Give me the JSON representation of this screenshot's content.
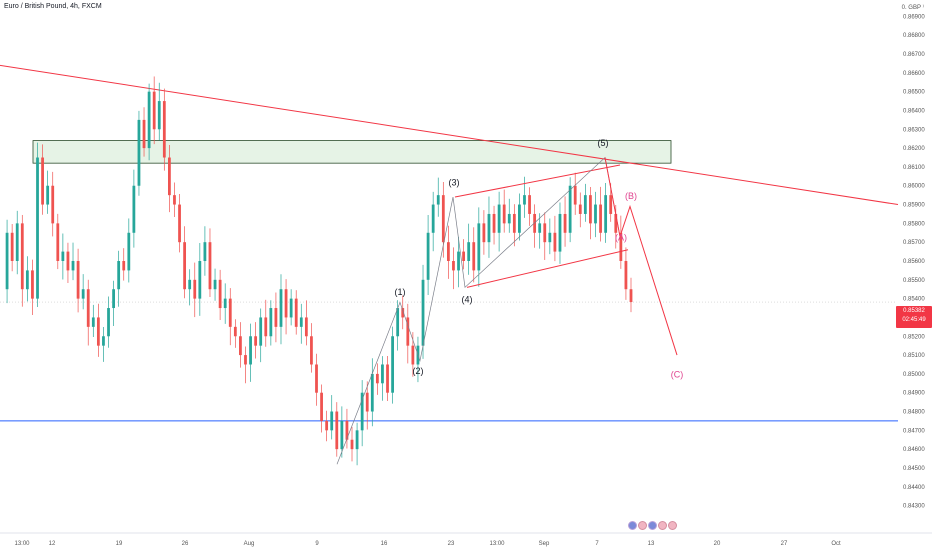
{
  "header": {
    "title": "Euro / British Pound, 4h, FXCM",
    "currency": "GBP"
  },
  "price_badge": {
    "price": "0.85382",
    "countdown": "02:45:49",
    "color": "#f23645"
  },
  "colors": {
    "up": "#26a69a",
    "down": "#ef5350",
    "trendline": "#f23645",
    "support_line": "#2962ff",
    "zone_fill": "#e6f3e6",
    "zone_border": "#2a4b2a",
    "wave_label": "#131722",
    "correction_label": "#e0438f"
  },
  "chart_data": {
    "type": "candlestick",
    "symbol": "Euro / British Pound",
    "interval": "4h",
    "source": "FXCM",
    "y_axis": {
      "min": 0.8425,
      "max": 0.8695,
      "ticks": [
        "0.86900",
        "0.86800",
        "0.86700",
        "0.86600",
        "0.86500",
        "0.86400",
        "0.86300",
        "0.86200",
        "0.86100",
        "0.86000",
        "0.85900",
        "0.85800",
        "0.85700",
        "0.85600",
        "0.85500",
        "0.85400",
        "0.85300",
        "0.85200",
        "0.85100",
        "0.85000",
        "0.84900",
        "0.84800",
        "0.84700",
        "0.84600",
        "0.84500",
        "0.84400",
        "0.84300"
      ]
    },
    "x_axis": {
      "ticks": [
        "13:00",
        "12",
        "19",
        "26",
        "Aug",
        "9",
        "16",
        "23",
        "13:00",
        "Sep",
        "7",
        "13",
        "20",
        "27",
        "Oct"
      ]
    },
    "last_price": 0.85382,
    "path": [
      0.8545,
      0.8575,
      0.856,
      0.858,
      0.8545,
      0.8555,
      0.854,
      0.8615,
      0.859,
      0.86,
      0.858,
      0.856,
      0.8565,
      0.8555,
      0.856,
      0.854,
      0.8545,
      0.8525,
      0.853,
      0.8515,
      0.852,
      0.8535,
      0.8545,
      0.856,
      0.8555,
      0.8575,
      0.86,
      0.8635,
      0.862,
      0.865,
      0.863,
      0.8645,
      0.8615,
      0.8595,
      0.859,
      0.857,
      0.8545,
      0.855,
      0.854,
      0.856,
      0.857,
      0.8545,
      0.855,
      0.8535,
      0.854,
      0.8525,
      0.852,
      0.851,
      0.8505,
      0.852,
      0.8515,
      0.853,
      0.852,
      0.8535,
      0.8525,
      0.8545,
      0.853,
      0.854,
      0.8525,
      0.853,
      0.852,
      0.8505,
      0.849,
      0.8475,
      0.847,
      0.848,
      0.846,
      0.8475,
      0.8465,
      0.846,
      0.847,
      0.849,
      0.848,
      0.85,
      0.8495,
      0.8505,
      0.849,
      0.852,
      0.8535,
      0.853,
      0.8515,
      0.8505,
      0.8515,
      0.855,
      0.8575,
      0.859,
      0.8595,
      0.857,
      0.856,
      0.8555,
      0.8565,
      0.856,
      0.857,
      0.8555,
      0.858,
      0.857,
      0.8585,
      0.8575,
      0.859,
      0.858,
      0.8585,
      0.8575,
      0.859,
      0.8595,
      0.8585,
      0.8575,
      0.858,
      0.857,
      0.8575,
      0.8565,
      0.8585,
      0.8575,
      0.86,
      0.859,
      0.8585,
      0.8595,
      0.858,
      0.859,
      0.8575,
      0.8595,
      0.8585,
      0.8575,
      0.856,
      0.8545,
      0.85382
    ],
    "annotations": {
      "resistance_zone": {
        "y_top": 0.8624,
        "y_bottom": 0.8612
      },
      "support_line": {
        "y": 0.8475
      },
      "trendline": {
        "from": 0.8664,
        "to": 0.859
      },
      "channel_upper": {
        "from": 0.8594,
        "to": 0.8611
      },
      "channel_lower": {
        "from": 0.8546,
        "to": 0.8566
      },
      "impulse_waves": [
        {
          "label": "(1)",
          "price": 0.8538
        },
        {
          "label": "(2)",
          "price": 0.8507
        },
        {
          "label": "(3)",
          "price": 0.8594
        },
        {
          "label": "(4)",
          "price": 0.8546
        },
        {
          "label": "(5)",
          "price": 0.8615
        }
      ],
      "corrective_waves": [
        {
          "label": "(A)",
          "price": 0.8573
        },
        {
          "label": "(B)",
          "price": 0.8589
        },
        {
          "label": "(C)",
          "price": 0.851
        }
      ]
    }
  }
}
